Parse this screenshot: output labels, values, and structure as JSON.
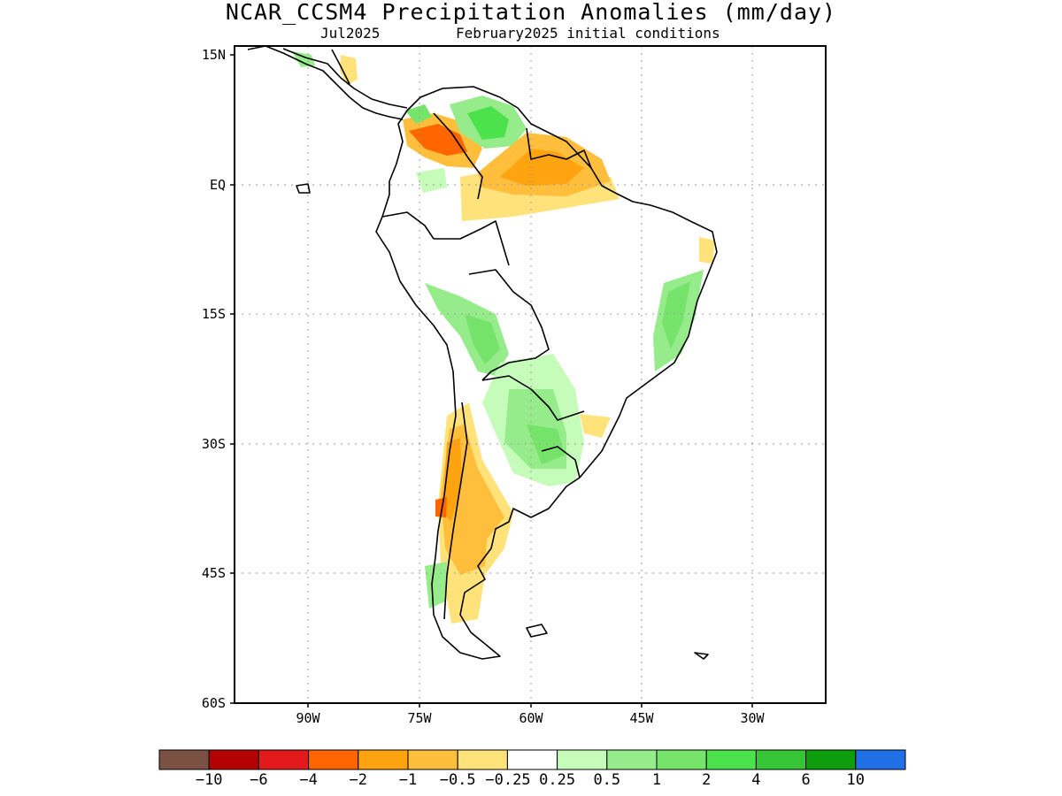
{
  "title": "NCAR_CCSM4 Precipitation Anomalies (mm/day)",
  "subtitle_left": "Jul2025",
  "subtitle_right": "February2025 initial conditions",
  "lat_labels": [
    "15N",
    "EQ",
    "15S",
    "30S",
    "45S",
    "60S"
  ],
  "lon_labels": [
    "90W",
    "75W",
    "60W",
    "45W",
    "30W"
  ],
  "colorbar": {
    "colors": [
      "#7a5143",
      "#b30000",
      "#e31a1c",
      "#ff6600",
      "#ffa310",
      "#ffbe3b",
      "#ffe27a",
      "#ffffff",
      "#c6fcb9",
      "#96ec8b",
      "#76e46a",
      "#4ce24c",
      "#35c535",
      "#0d9e0d",
      "#1f6fe6"
    ],
    "labels": [
      "-10",
      "-6",
      "-4",
      "-2",
      "-1",
      "-0.5",
      "-0.25",
      "0.25",
      "0.5",
      "1",
      "2",
      "4",
      "6",
      "10"
    ]
  },
  "chart_data": {
    "type": "heatmap",
    "title": "NCAR_CCSM4 Precipitation Anomalies (mm/day)",
    "subtitle": "Jul2025    February2025 initial conditions",
    "units": "mm/day",
    "lon_range": [
      -100,
      -20
    ],
    "lat_range": [
      -60,
      15
    ],
    "lon_ticks": [
      "90W",
      "75W",
      "60W",
      "45W",
      "30W"
    ],
    "lat_ticks": [
      "15N",
      "EQ",
      "15S",
      "30S",
      "45S",
      "60S"
    ],
    "contour_levels": [
      -10,
      -6,
      -4,
      -2,
      -1,
      -0.5,
      -0.25,
      0.25,
      0.5,
      1,
      2,
      4,
      6,
      10
    ],
    "grid": true,
    "legend": "bottom"
  }
}
